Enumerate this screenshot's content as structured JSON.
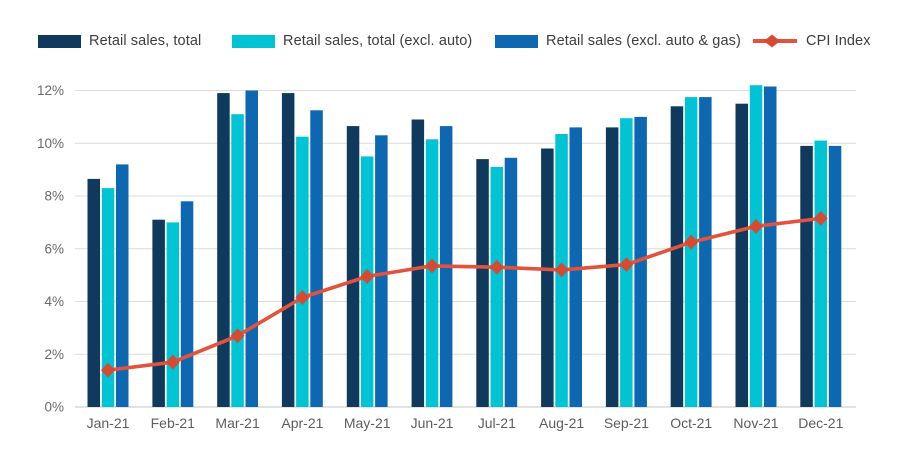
{
  "legend": {
    "items": [
      {
        "label": "Retail sales, total",
        "color": "#10395e",
        "type": "swatch"
      },
      {
        "label": "Retail sales, total (excl. auto)",
        "color": "#00c4d4",
        "type": "swatch"
      },
      {
        "label": "Retail sales (excl. auto & gas)",
        "color": "#0d68b1",
        "type": "swatch"
      },
      {
        "label": "CPI Index",
        "color": "#e2523d",
        "type": "line-diamond"
      }
    ]
  },
  "chart_data": {
    "type": "bar+line",
    "title": "",
    "xlabel": "",
    "ylabel": "",
    "categories": [
      "Jan-21",
      "Feb-21",
      "Mar-21",
      "Apr-21",
      "May-21",
      "Jun-21",
      "Jul-21",
      "Aug-21",
      "Sep-21",
      "Oct-21",
      "Nov-21",
      "Dec-21"
    ],
    "series": [
      {
        "name": "Retail sales, total",
        "type": "bar",
        "color": "#10395e",
        "values": [
          8.65,
          7.1,
          11.9,
          11.9,
          10.65,
          10.9,
          9.4,
          9.8,
          10.6,
          11.4,
          11.5,
          9.9
        ]
      },
      {
        "name": "Retail sales, total (excl. auto)",
        "type": "bar",
        "color": "#00c4d4",
        "values": [
          8.3,
          7.0,
          11.1,
          10.25,
          9.5,
          10.15,
          9.1,
          10.35,
          10.95,
          11.75,
          12.2,
          10.1
        ]
      },
      {
        "name": "Retail sales (excl. auto & gas)",
        "type": "bar",
        "color": "#0d68b1",
        "values": [
          9.2,
          7.8,
          12.0,
          11.25,
          10.3,
          10.65,
          9.45,
          10.6,
          11.0,
          11.75,
          12.15,
          9.9
        ]
      },
      {
        "name": "CPI Index",
        "type": "line",
        "color": "#e2523d",
        "marker_color": "#d64a32",
        "values": [
          1.4,
          1.7,
          2.7,
          4.15,
          4.95,
          5.35,
          5.3,
          5.2,
          5.4,
          6.25,
          6.85,
          7.15
        ]
      }
    ],
    "yticks": [
      "0%",
      "2%",
      "4%",
      "6%",
      "8%",
      "10%",
      "12%"
    ],
    "ylim": [
      0,
      12
    ],
    "grid": true,
    "legend_position": "top",
    "colors": {
      "gridline": "#dcdcdc",
      "baseline": "#c4c4c4",
      "ytick_text": "#6a6a6a",
      "xtick_text": "#5d5d5d"
    }
  }
}
